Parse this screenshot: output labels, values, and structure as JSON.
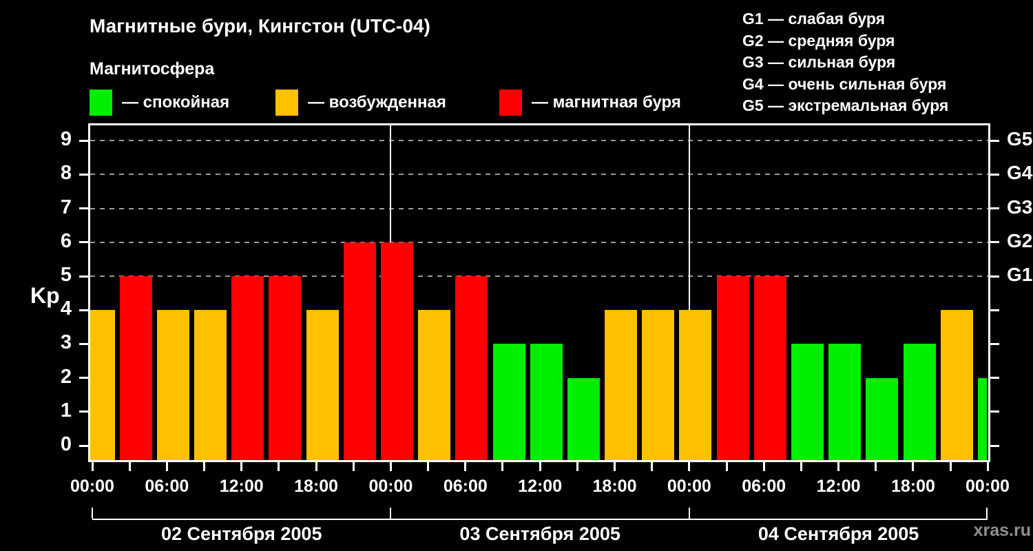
{
  "title": "Магнитные бури, Кингстон (UTC-04)",
  "subtitle": "Магнитосфера",
  "legend": {
    "items": [
      {
        "key": "calm",
        "label": "— спокойная",
        "color": "#00EE00"
      },
      {
        "key": "active",
        "label": "— возбужденная",
        "color": "#FFC000"
      },
      {
        "key": "storm",
        "label": "— магнитная буря",
        "color": "#FF0000"
      }
    ]
  },
  "storm_scale_legend": [
    "G1 — слабая буря",
    "G2 — средняя буря",
    "G3 — сильная буря",
    "G4 — очень сильная буря",
    "G5 — экстремальная буря"
  ],
  "watermark": "xras.ru",
  "colors": {
    "background": "#000000",
    "axis": "#FFFFFF",
    "grid": "#9C9C9C",
    "watermark": "#909090"
  },
  "chart_data": {
    "type": "bar",
    "ylabel": "Kp",
    "ylim": [
      0,
      9
    ],
    "interval_hours": 3,
    "grid": "dashed horizontal lines at Kp 5-9 only",
    "legend_position": "top",
    "series": [
      {
        "date": "02 Сентября 2005",
        "kp": [
          4,
          5,
          4,
          4,
          5,
          5,
          4,
          6
        ]
      },
      {
        "date": "03 Сентября 2005",
        "kp": [
          6,
          4,
          5,
          3,
          3,
          2,
          4,
          4
        ]
      },
      {
        "date": "04 Сентября 2005",
        "kp": [
          4,
          5,
          5,
          3,
          3,
          2,
          3,
          4
        ]
      }
    ],
    "partial_last_bar_kp": 2,
    "color_rule": {
      "calm_max_kp": 3,
      "active_kp": 4,
      "storm_min_kp": 5
    },
    "x_tick_labels": [
      "00:00",
      "06:00",
      "12:00",
      "18:00",
      "00:00",
      "06:00",
      "12:00",
      "18:00",
      "00:00",
      "06:00",
      "12:00",
      "18:00",
      "00:00"
    ],
    "y_ticks": [
      0,
      1,
      2,
      3,
      4,
      5,
      6,
      7,
      8,
      9
    ],
    "g_scale": [
      {
        "kp": 5,
        "label": "G1"
      },
      {
        "kp": 6,
        "label": "G2"
      },
      {
        "kp": 7,
        "label": "G3"
      },
      {
        "kp": 8,
        "label": "G4"
      },
      {
        "kp": 9,
        "label": "G5"
      }
    ]
  }
}
